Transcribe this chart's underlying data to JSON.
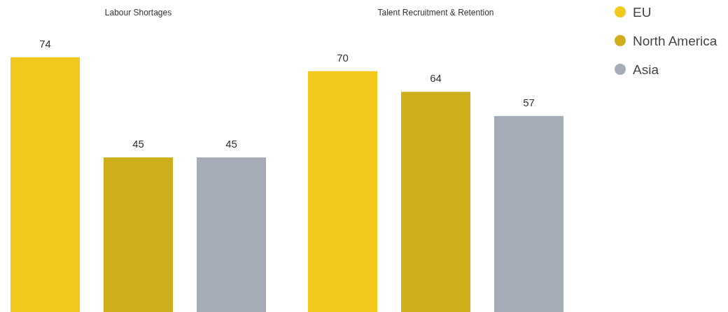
{
  "chart_data": {
    "type": "bar",
    "categories": [
      "Labour Shortages",
      "Talent Recruitment & Retention"
    ],
    "series": [
      {
        "name": "EU",
        "color": "#f2c81c",
        "values": [
          74,
          70
        ]
      },
      {
        "name": "North America",
        "color": "#cfae1b",
        "values": [
          45,
          64
        ]
      },
      {
        "name": "Asia",
        "color": "#a5acb8",
        "values": [
          45,
          57
        ]
      }
    ],
    "data_labels": true,
    "legend": "top right"
  }
}
